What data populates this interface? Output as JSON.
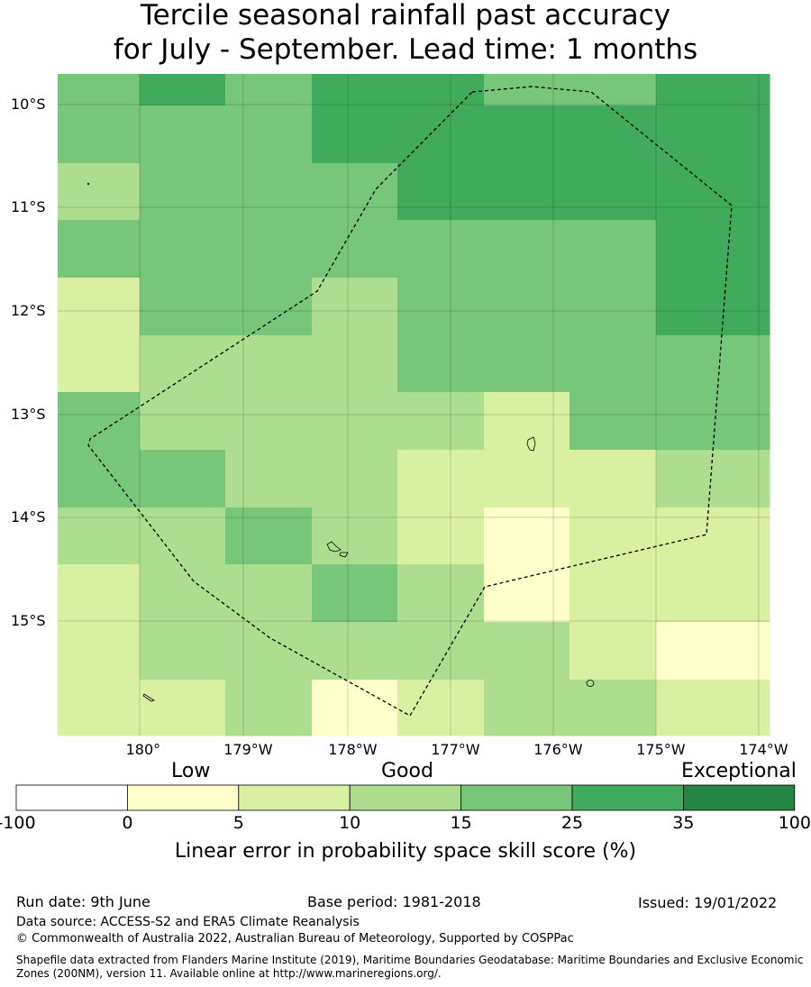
{
  "title_line1": "Tercile seasonal rainfall past accuracy",
  "title_line2": "for July - September. Lead time: 1 months",
  "map": {
    "lat_labels": [
      "10°S",
      "11°S",
      "12°S",
      "13°S",
      "14°S",
      "15°S"
    ],
    "lon_labels": [
      "180°",
      "179°W",
      "178°W",
      "177°W",
      "176°W",
      "175°W",
      "174°W"
    ],
    "grid_value_rows": [
      [
        "25",
        "35",
        "25",
        "35",
        "35",
        "25",
        "25",
        "35"
      ],
      [
        "25",
        "25",
        "25",
        "35",
        "35",
        "35",
        "35",
        "35"
      ],
      [
        "15",
        "25",
        "25",
        "25",
        "35",
        "35",
        "35",
        "35"
      ],
      [
        "25",
        "25",
        "25",
        "25",
        "25",
        "25",
        "25",
        "35"
      ],
      [
        "10",
        "25",
        "25",
        "15",
        "25",
        "25",
        "25",
        "35"
      ],
      [
        "10",
        "15",
        "15",
        "15",
        "25",
        "25",
        "25",
        "25"
      ],
      [
        "25",
        "15",
        "15",
        "15",
        "15",
        "10",
        "25",
        "25"
      ],
      [
        "25",
        "25",
        "15",
        "15",
        "10",
        "10",
        "10",
        "15"
      ],
      [
        "15",
        "15",
        "25",
        "15",
        "10",
        "5",
        "10",
        "10"
      ],
      [
        "10",
        "15",
        "15",
        "25",
        "15",
        "5",
        "10",
        "10"
      ],
      [
        "10",
        "15",
        "15",
        "15",
        "15",
        "15",
        "10",
        "5"
      ],
      [
        "10",
        "10",
        "15",
        "5",
        "10",
        "15",
        "15",
        "10"
      ]
    ]
  },
  "colorbar": {
    "categories": [
      "Low",
      "Good",
      "Exceptional"
    ],
    "ticks": [
      "-100",
      "0",
      "5",
      "10",
      "15",
      "25",
      "35",
      "100"
    ],
    "colors": [
      "#ffffff",
      "#ffffcc",
      "#d9f0a3",
      "#addd8e",
      "#78c679",
      "#41ab5d",
      "#238443"
    ],
    "label": "Linear error in probability space skill score (%)"
  },
  "footer": {
    "run_date": "Run date: 9th June",
    "base_period": "Base period: 1981-2018",
    "issued": "Issued: 19/01/2022",
    "data_source": "Data source: ACCESS-S2 and ERA5 Climate Reanalysis",
    "copyright": "© Commonwealth of Australia 2022, Australian Bureau of Meteorology, Supported by COSPPac",
    "shapefile_line1": "Shapefile data extracted from Flanders Marine Institute (2019), Maritime Boundaries Geodatabase: Maritime Boundaries and Exclusive Economic",
    "shapefile_line2": "Zones (200NM), version 11. Available online at http://www.marineregions.org/."
  }
}
